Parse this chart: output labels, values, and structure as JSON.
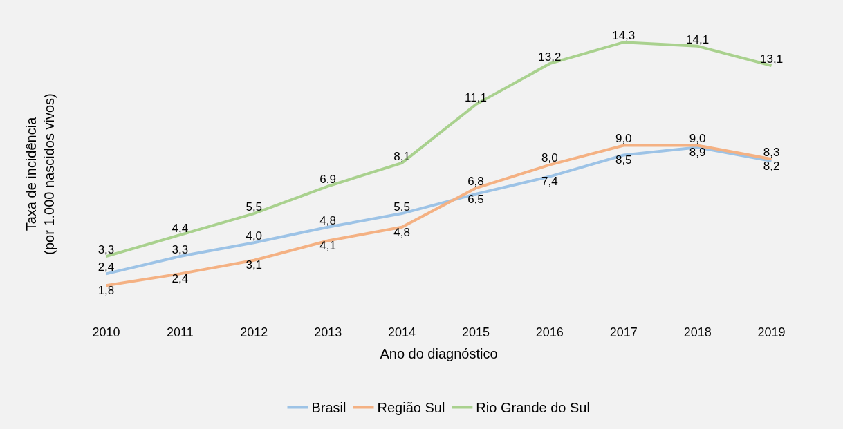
{
  "chart_data": {
    "type": "line",
    "xlabel": "Ano do diagnóstico",
    "ylabel": "Taxa de incidência\n(por 1.000 nascidos vivos)",
    "categories": [
      "2010",
      "2011",
      "2012",
      "2013",
      "2014",
      "2015",
      "2016",
      "2017",
      "2018",
      "2019"
    ],
    "series": [
      {
        "name": "Brasil",
        "color": "#9dc3e6",
        "values": [
          2.4,
          3.3,
          4.0,
          4.8,
          5.5,
          6.5,
          7.4,
          8.5,
          8.9,
          8.2
        ],
        "value_labels": [
          "2,4",
          "3,3",
          "4,0",
          "4,8",
          "5.5",
          "6,5",
          "7,4",
          "8,5",
          "8,9",
          "8,2"
        ]
      },
      {
        "name": "Região Sul",
        "color": "#f4b183",
        "values": [
          1.8,
          2.4,
          3.1,
          4.1,
          4.8,
          6.8,
          8.0,
          9.0,
          9.0,
          8.3
        ],
        "value_labels": [
          "1,8",
          "2,4",
          "3,1",
          "4,1",
          "4,8",
          "6,8",
          "8,0",
          "9,0",
          "9,0",
          "8,3"
        ]
      },
      {
        "name": "Rio Grande do Sul",
        "color": "#a9d18e",
        "values": [
          3.3,
          4.4,
          5.5,
          6.9,
          8.1,
          11.1,
          13.2,
          14.3,
          14.1,
          13.1
        ],
        "value_labels": [
          "3,3",
          "4,4",
          "5,5",
          "6,9",
          "8,1",
          "11,1",
          "13,2",
          "14,3",
          "14,1",
          "13,1"
        ]
      }
    ],
    "legend": "bottom",
    "grid": false,
    "marker": "none",
    "line_style": "solid",
    "tick_labels": "x"
  }
}
